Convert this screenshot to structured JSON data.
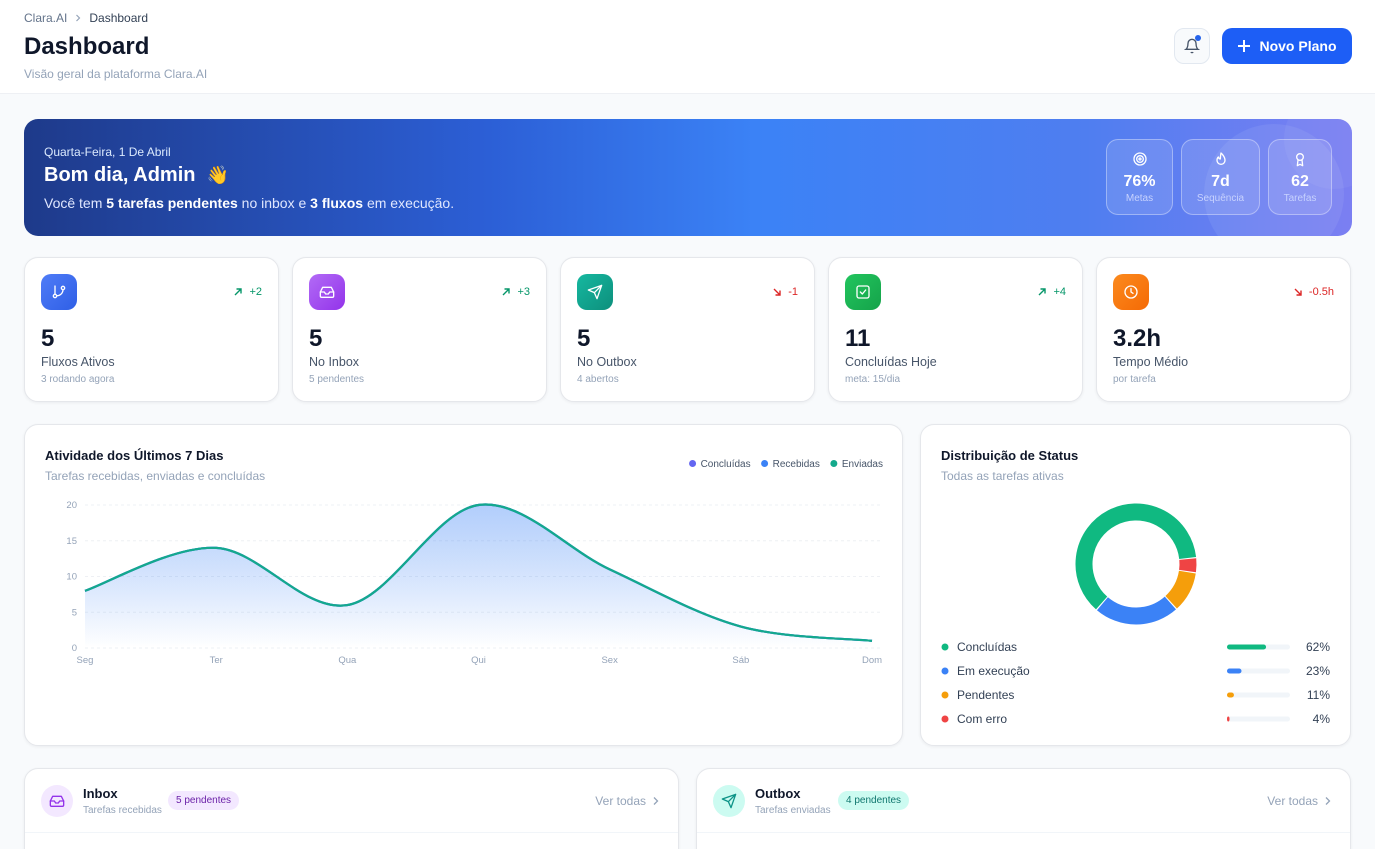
{
  "header": {
    "breadcrumb": [
      "Clara.AI",
      "Dashboard"
    ],
    "title": "Dashboard",
    "subtitle": "Visão geral da plataforma Clara.AI",
    "button": "Novo Plano"
  },
  "banner": {
    "date": "Quarta-Feira, 1 De Abril",
    "greeting": "Bom dia, Admin",
    "emoji": "👋",
    "message": [
      "Você tem ",
      "5 tarefas pendentes",
      " no inbox e ",
      "3 fluxos",
      " em execução."
    ],
    "stats": [
      {
        "value": "76%",
        "label": "Metas"
      },
      {
        "value": "7d",
        "label": "Sequência"
      },
      {
        "value": "62",
        "label": "Tarefas"
      }
    ]
  },
  "cards": [
    {
      "value": "5",
      "label": "Fluxos Ativos",
      "note": "3 rodando agora",
      "delta": "+2",
      "trend": "up"
    },
    {
      "value": "5",
      "label": "No Inbox",
      "note": "5 pendentes",
      "delta": "+3",
      "trend": "up"
    },
    {
      "value": "5",
      "label": "No Outbox",
      "note": "4 abertos",
      "delta": "-1",
      "trend": "down"
    },
    {
      "value": "11",
      "label": "Concluídas Hoje",
      "note": "meta: 15/dia",
      "delta": "+4",
      "trend": "up"
    },
    {
      "value": "3.2h",
      "label": "Tempo Médio",
      "note": "por tarefa",
      "delta": "-0.5h",
      "trend": "down"
    }
  ],
  "chart_data": [
    {
      "type": "area",
      "title": "Atividade dos Últimos 7 Dias",
      "subtitle": "Tarefas recebidas, enviadas e concluídas",
      "categories": [
        "Seg",
        "Ter",
        "Qua",
        "Qui",
        "Sex",
        "Sáb",
        "Dom"
      ],
      "series": [
        {
          "name": "Concluídas",
          "color": "#6366f1",
          "values": [
            8,
            14,
            6,
            20,
            11,
            3,
            1
          ]
        },
        {
          "name": "Recebidas",
          "color": "#3b82f6",
          "values": [
            8,
            14,
            6,
            20,
            11,
            3,
            1
          ]
        },
        {
          "name": "Enviadas",
          "color": "#14a98c",
          "values": [
            8,
            14,
            6,
            20,
            11,
            3,
            1
          ]
        }
      ],
      "ylim": [
        0,
        20
      ],
      "yticks": [
        0,
        5,
        10,
        15,
        20
      ],
      "grid": true
    },
    {
      "type": "pie",
      "title": "Distribuição de Status",
      "subtitle": "Todas as tarefas ativas",
      "categories": [
        "Concluídas",
        "Em execução",
        "Pendentes",
        "Com erro"
      ],
      "values": [
        62,
        23,
        11,
        4
      ],
      "value_labels": [
        "62%",
        "23%",
        "11%",
        "4%"
      ],
      "colors": [
        "#10b981",
        "#3b82f6",
        "#f59e0b",
        "#ef4444"
      ]
    }
  ],
  "panels": [
    {
      "title": "Inbox",
      "subtitle": "Tarefas recebidas",
      "badge": "5 pendentes",
      "link": "Ver todas"
    },
    {
      "title": "Outbox",
      "subtitle": "Tarefas enviadas",
      "badge": "4 pendentes",
      "link": "Ver todas"
    }
  ]
}
